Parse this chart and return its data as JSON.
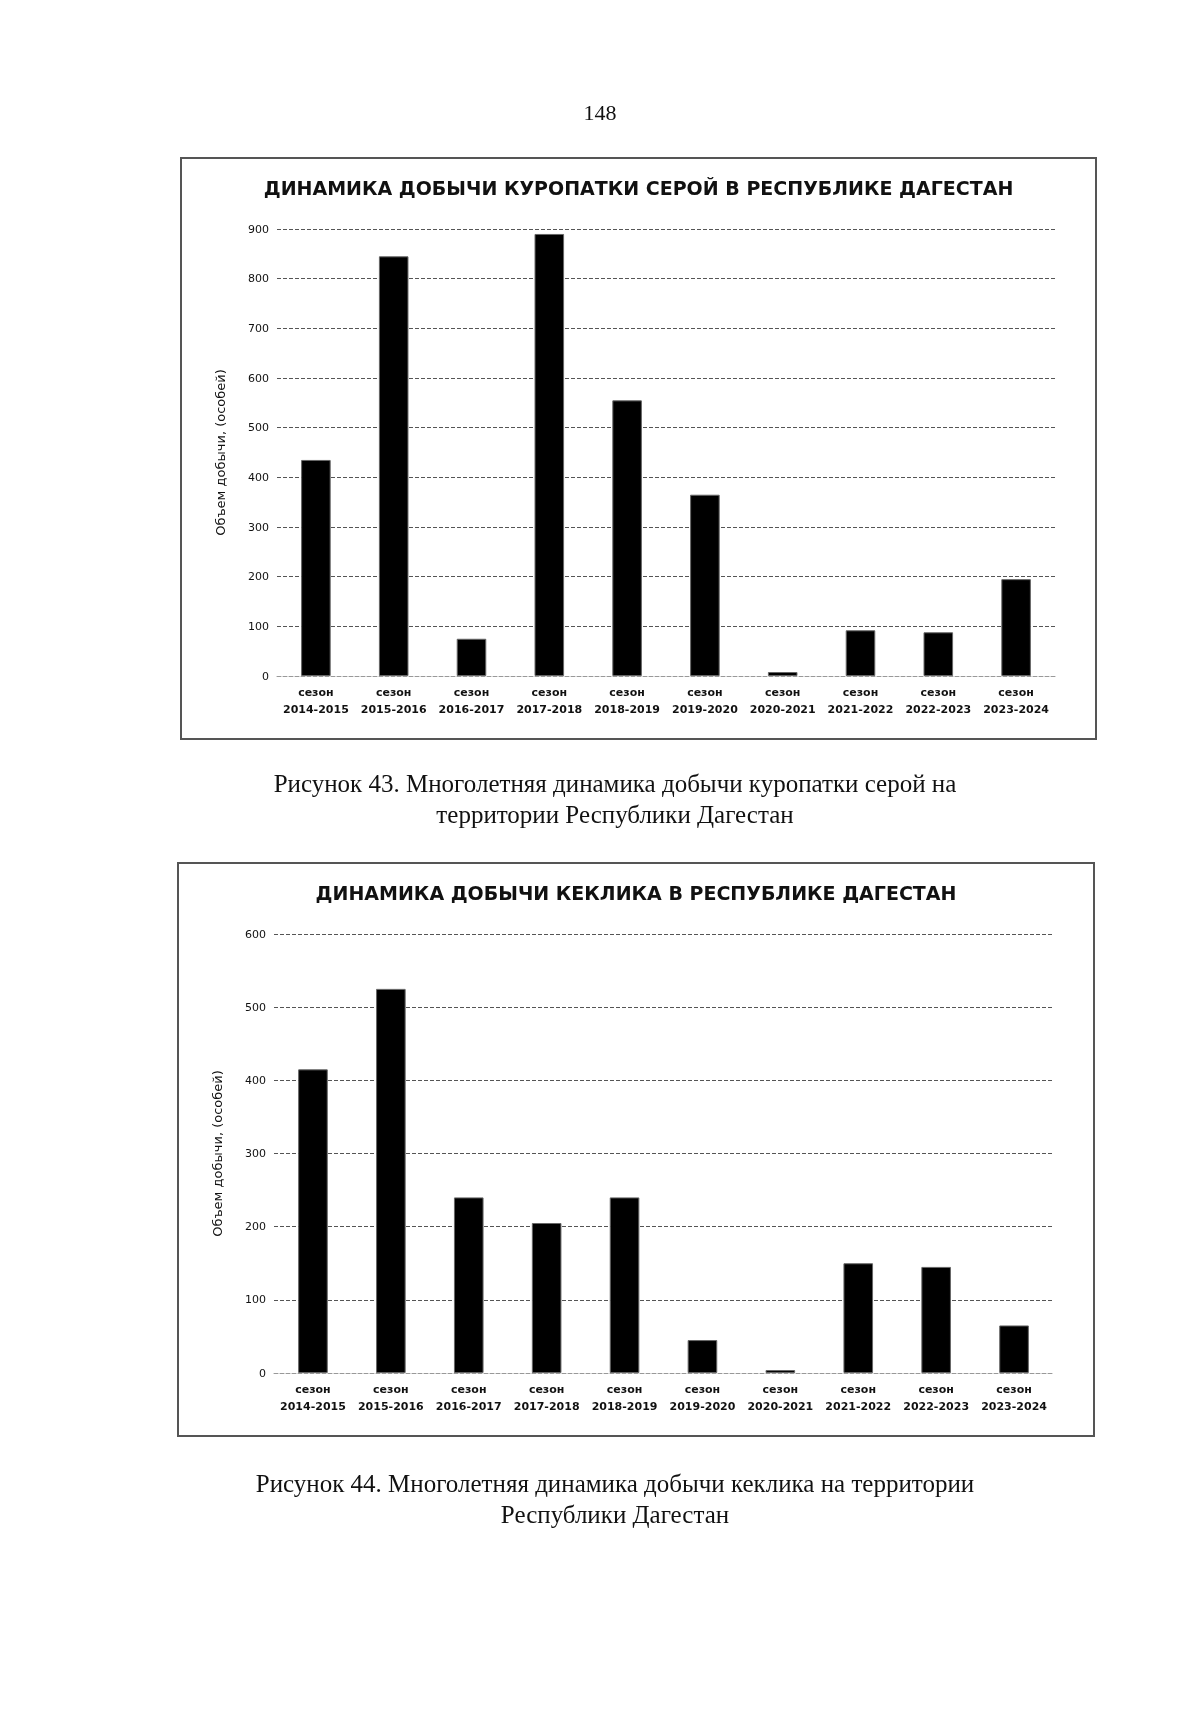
{
  "chart_data": [
    {
      "type": "bar",
      "title": "ДИНАМИКА ДОБЫЧИ КУРОПАТКИ СЕРОЙ В РЕСПУБЛИКЕ ДАГЕСТАН",
      "ylabel": "Объем добычи, (особей)",
      "categories": [
        "сезон\n2014-2015",
        "сезон\n2015-2016",
        "сезон\n2016-2017",
        "сезон\n2017-2018",
        "сезон\n2018-2019",
        "сезон\n2019-2020",
        "сезон\n2020-2021",
        "сезон\n2021-2022",
        "сезон\n2022-2023",
        "сезон\n2023-2024"
      ],
      "values": [
        435,
        845,
        75,
        890,
        555,
        365,
        8,
        92,
        88,
        195
      ],
      "color": "#000000",
      "ylim": [
        0,
        900
      ],
      "yticks": [
        0,
        100,
        200,
        300,
        400,
        500,
        600,
        700,
        800,
        900
      ],
      "grid": "y",
      "annotations": [
        "148",
        "Рисунок 43. Многолетняя динамика добычи куропатки серой на территории Республики Дагестан"
      ]
    },
    {
      "type": "bar",
      "title": "ДИНАМИКА ДОБЫЧИ КЕКЛИКА В РЕСПУБЛИКЕ ДАГЕСТАН",
      "ylabel": "Объем добычи, (особей)",
      "categories": [
        "сезон\n2014-2015",
        "сезон\n2015-2016",
        "сезон\n2016-2017",
        "сезон\n2017-2018",
        "сезон\n2018-2019",
        "сезон\n2019-2020",
        "сезон\n2020-2021",
        "сезон\n2021-2022",
        "сезон\n2022-2023",
        "сезон\n2023-2024"
      ],
      "values": [
        415,
        525,
        240,
        205,
        240,
        45,
        4,
        150,
        145,
        65
      ],
      "color": "#000000",
      "ylim": [
        0,
        600
      ],
      "yticks": [
        0,
        100,
        200,
        300,
        400,
        500,
        600
      ],
      "grid": "y",
      "annotations": [
        "Рисунок 44. Многолетняя динамика добычи кеклика на территории Республики Дагестан"
      ]
    }
  ]
}
